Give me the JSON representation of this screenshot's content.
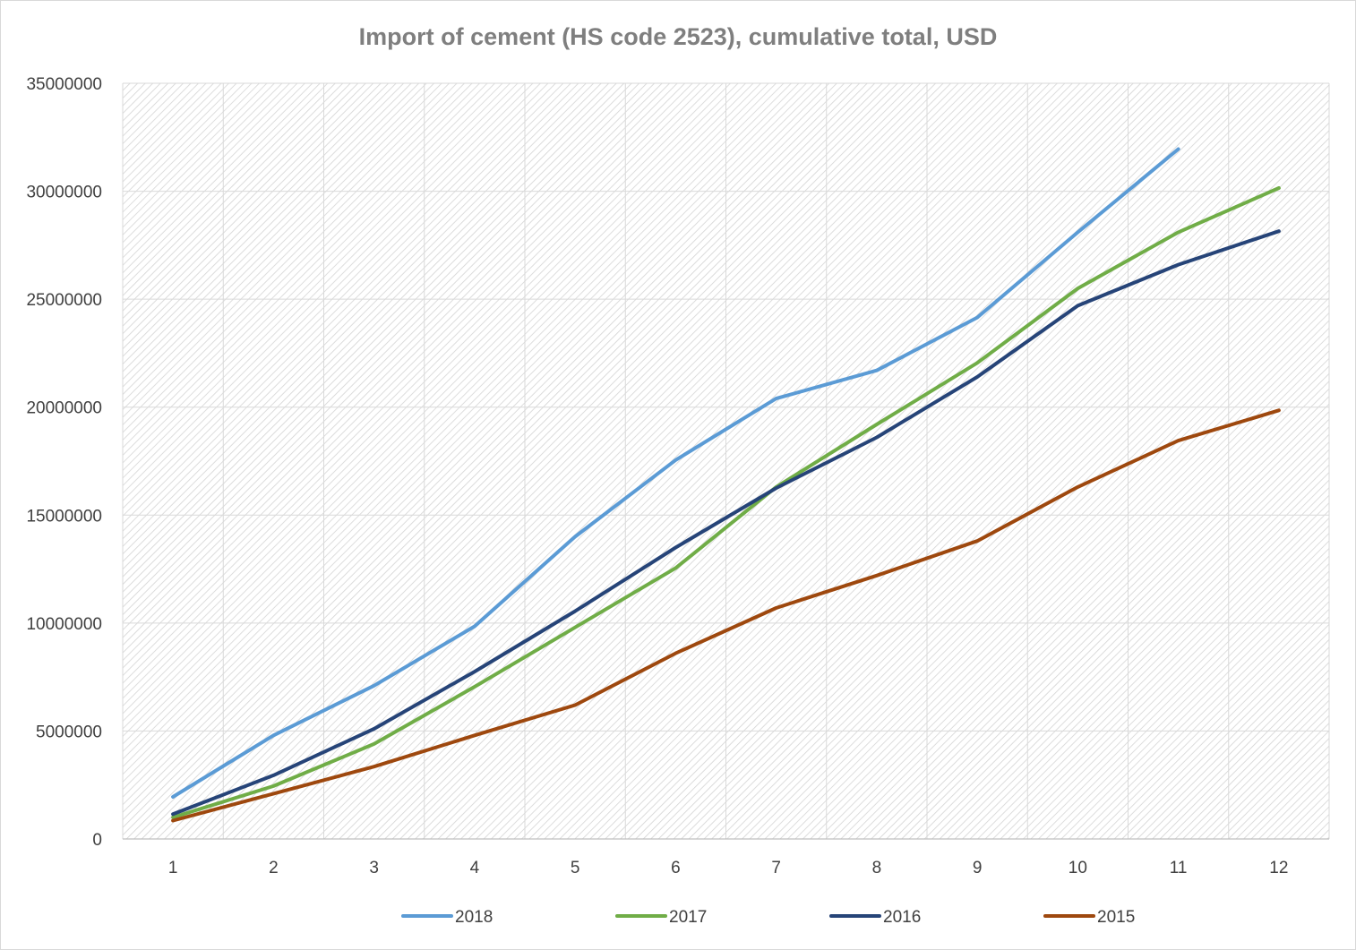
{
  "chart_data": {
    "type": "line",
    "title": "Import of cement (HS code 2523), cumulative total, USD",
    "xlabel": "",
    "ylabel": "",
    "categories": [
      "1",
      "2",
      "3",
      "4",
      "5",
      "6",
      "7",
      "8",
      "9",
      "10",
      "11",
      "12"
    ],
    "ylim": [
      0,
      35000000
    ],
    "yticks": [
      "0",
      "5000000",
      "10000000",
      "15000000",
      "20000000",
      "25000000",
      "30000000",
      "35000000"
    ],
    "grid": true,
    "legend_position": "bottom",
    "series": [
      {
        "name": "2018",
        "color": "#5b9bd5",
        "values": [
          1950000,
          4800000,
          7100000,
          9850000,
          14000000,
          17550000,
          20400000,
          21700000,
          24150000,
          28100000,
          31950000,
          null
        ]
      },
      {
        "name": "2017",
        "color": "#70ad47",
        "values": [
          1000000,
          2450000,
          4400000,
          7050000,
          9800000,
          12550000,
          16300000,
          19200000,
          22050000,
          25500000,
          28100000,
          30150000
        ]
      },
      {
        "name": "2016",
        "color": "#264478",
        "values": [
          1150000,
          2950000,
          5100000,
          7750000,
          10550000,
          13500000,
          16250000,
          18600000,
          21400000,
          24700000,
          26600000,
          28150000
        ]
      },
      {
        "name": "2015",
        "color": "#9e480e",
        "values": [
          850000,
          2100000,
          3350000,
          4800000,
          6200000,
          8600000,
          10700000,
          12200000,
          13800000,
          16300000,
          18450000,
          19850000
        ]
      }
    ]
  }
}
